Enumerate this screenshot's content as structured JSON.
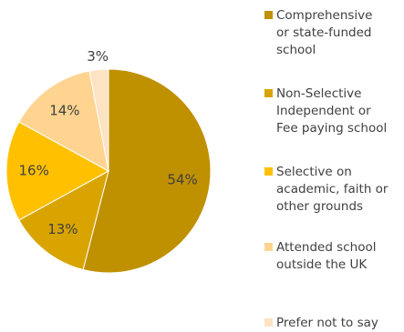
{
  "chart_data": {
    "type": "pie",
    "start_angle_deg": 0,
    "direction": "clockwise",
    "legend_position": "right",
    "slices": [
      {
        "name": "Comprehensive\nor state-funded\nschool",
        "value": 54,
        "label": "54%",
        "color": "#BF9000"
      },
      {
        "name": "Non-Selective\nIndependent or\nFee paying school",
        "value": 13,
        "label": "13%",
        "color": "#D9A400"
      },
      {
        "name": "Selective on\nacademic, faith or\nother grounds",
        "value": 16,
        "label": "16%",
        "color": "#FFC000"
      },
      {
        "name": "Attended school\noutside the UK",
        "value": 14,
        "label": "14%",
        "color": "#FFD490"
      },
      {
        "name": "Prefer not to say",
        "value": 3,
        "label": "3%",
        "color": "#FDE3C2"
      }
    ]
  }
}
